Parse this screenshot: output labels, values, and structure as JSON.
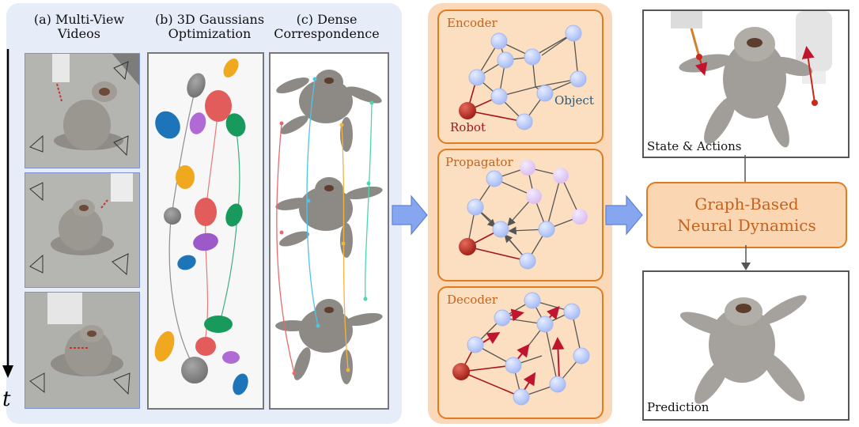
{
  "left_panel": {
    "col_a_title": "(a) Multi-View\nVideos",
    "col_b_title": "(b) 3D Gaussians\nOptimization",
    "col_c_title": "(c) Dense\nCorrespondence",
    "time_label": "t"
  },
  "graph_panel": {
    "encoder_label": "Encoder",
    "object_label": "Object",
    "robot_label": "Robot",
    "propagator_label": "Propagator",
    "decoder_label": "Decoder"
  },
  "right_panel": {
    "state_label": "State & Actions",
    "dynamics_line1": "Graph-Based",
    "dynamics_line2": "Neural Dynamics",
    "prediction_label": "Prediction"
  },
  "colors": {
    "left_bg": "#e6ecf8",
    "orange_bg": "#fad8b8",
    "orange_accent": "#e07b1f",
    "node_blue": "#b8c8fa",
    "node_purple": "#e4cdf2",
    "node_red": "#b0241b",
    "arrow_blue": "#86a6f0"
  }
}
